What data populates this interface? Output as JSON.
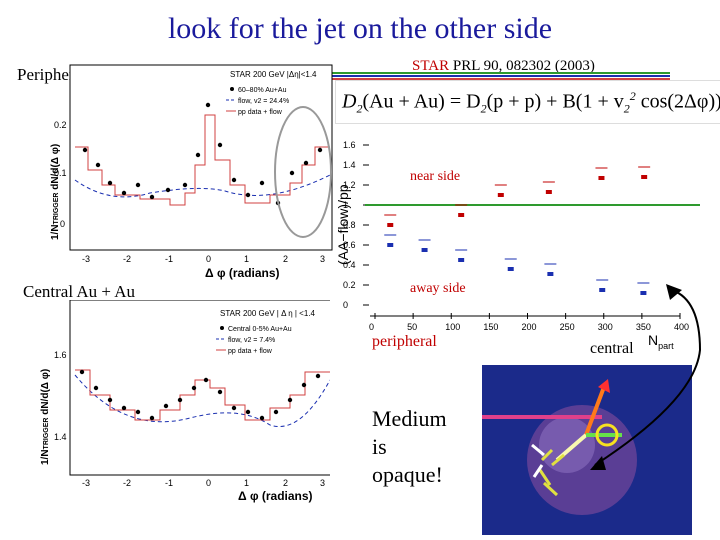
{
  "slide": {
    "title": "look for the jet on the other side",
    "reference": {
      "prefix": "STAR",
      "rest": " PRL 90, 082302 (2003)"
    },
    "peripheral_label": "Peripheral Au + Au",
    "central_label": "Central Au + Au",
    "formula": {
      "d2": "D",
      "sub2": "2",
      "aa": "(Au + Au) = D",
      "pp": "(p + p) + B(1 + v",
      "cos": "cos(2Δφ))",
      "sup2": "2"
    },
    "medium_text": [
      "Medium",
      "is",
      "opaque!"
    ]
  },
  "plot_top": {
    "header": "STAR 200 GeV |Δη|<1.4",
    "legend": [
      "60–80% Au+Au",
      "flow, v2 = 24.4%",
      "pp data + flow"
    ],
    "ylabel": "1/N",
    "ylabel_sub": "TRIGGER",
    "ylabel_rest": " dN/d(Δ φ)",
    "xlabel": "Δ φ (radians)",
    "xticks": [
      "-3",
      "-2",
      "-1",
      "0",
      "1",
      "2",
      "3"
    ],
    "yticks": [
      "0.2",
      "0.1",
      "0"
    ]
  },
  "plot_bottom": {
    "header": "STAR 200 GeV  | Δ η | <1.4",
    "legend": [
      "Central 0-5% Au+Au",
      "flow, v2 = 7.4%",
      "pp data + flow"
    ],
    "ylabel": "1/N",
    "ylabel_sub": "TRIGGER",
    "ylabel_rest": " dN/d(Δ φ)",
    "xlabel": "Δ φ (radians)",
    "xticks": [
      "-3",
      "-2",
      "-1",
      "0",
      "1",
      "2",
      "3"
    ],
    "yticks": [
      "1.6",
      "1.4"
    ]
  },
  "plot_ratio": {
    "ylabel": "(AA−flow)/pp",
    "xlabel": "N",
    "xlabel_sub": "part",
    "xticks": [
      "0",
      "50",
      "100",
      "150",
      "200",
      "250",
      "300",
      "350",
      "400"
    ],
    "yticks": [
      "1.6",
      "1.4",
      "1.2",
      "1",
      "0.8",
      "0.6",
      "0.4",
      "0.2",
      "0"
    ],
    "near_label": "near side",
    "away_label": "away side",
    "peripheral": "peripheral",
    "central": "central"
  },
  "chart_data": [
    {
      "type": "scatter",
      "title": "",
      "xlabel": "N_part",
      "ylabel": "(AA−flow)/pp",
      "xlim": [
        0,
        400
      ],
      "ylim": [
        0,
        1.7
      ],
      "reference_line": 1.0,
      "series": [
        {
          "name": "near side",
          "color": "#c00000",
          "points": [
            [
              20,
              0.8
            ],
            [
              113,
              0.9
            ],
            [
              165,
              1.1
            ],
            [
              228,
              1.13
            ],
            [
              297,
              1.27
            ],
            [
              353,
              1.28
            ]
          ]
        },
        {
          "name": "away side",
          "color": "#1a2fb0",
          "points": [
            [
              20,
              0.6
            ],
            [
              65,
              0.55
            ],
            [
              113,
              0.45
            ],
            [
              178,
              0.36
            ],
            [
              230,
              0.31
            ],
            [
              298,
              0.15
            ],
            [
              352,
              0.12
            ]
          ]
        }
      ]
    }
  ],
  "colors": {
    "title": "#1a1a9c",
    "near": "#c00000",
    "away": "#1a2fb0",
    "unity_line": "#2e9a2e",
    "arrow": "#000000"
  }
}
